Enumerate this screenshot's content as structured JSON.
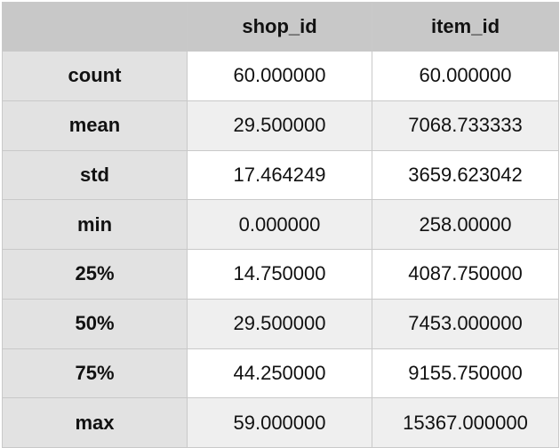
{
  "table": {
    "columns": [
      "",
      "shop_id",
      "item_id"
    ],
    "rows": [
      {
        "label": "count",
        "shop_id": "60.000000",
        "item_id": "60.000000"
      },
      {
        "label": "mean",
        "shop_id": "29.500000",
        "item_id": "7068.733333"
      },
      {
        "label": "std",
        "shop_id": "17.464249",
        "item_id": "3659.623042"
      },
      {
        "label": "min",
        "shop_id": "0.000000",
        "item_id": "258.00000"
      },
      {
        "label": "25%",
        "shop_id": "14.750000",
        "item_id": "4087.750000"
      },
      {
        "label": "50%",
        "shop_id": "29.500000",
        "item_id": "7453.000000"
      },
      {
        "label": "75%",
        "shop_id": "44.250000",
        "item_id": "9155.750000"
      },
      {
        "label": "max",
        "shop_id": "59.000000",
        "item_id": "15367.000000"
      }
    ]
  }
}
